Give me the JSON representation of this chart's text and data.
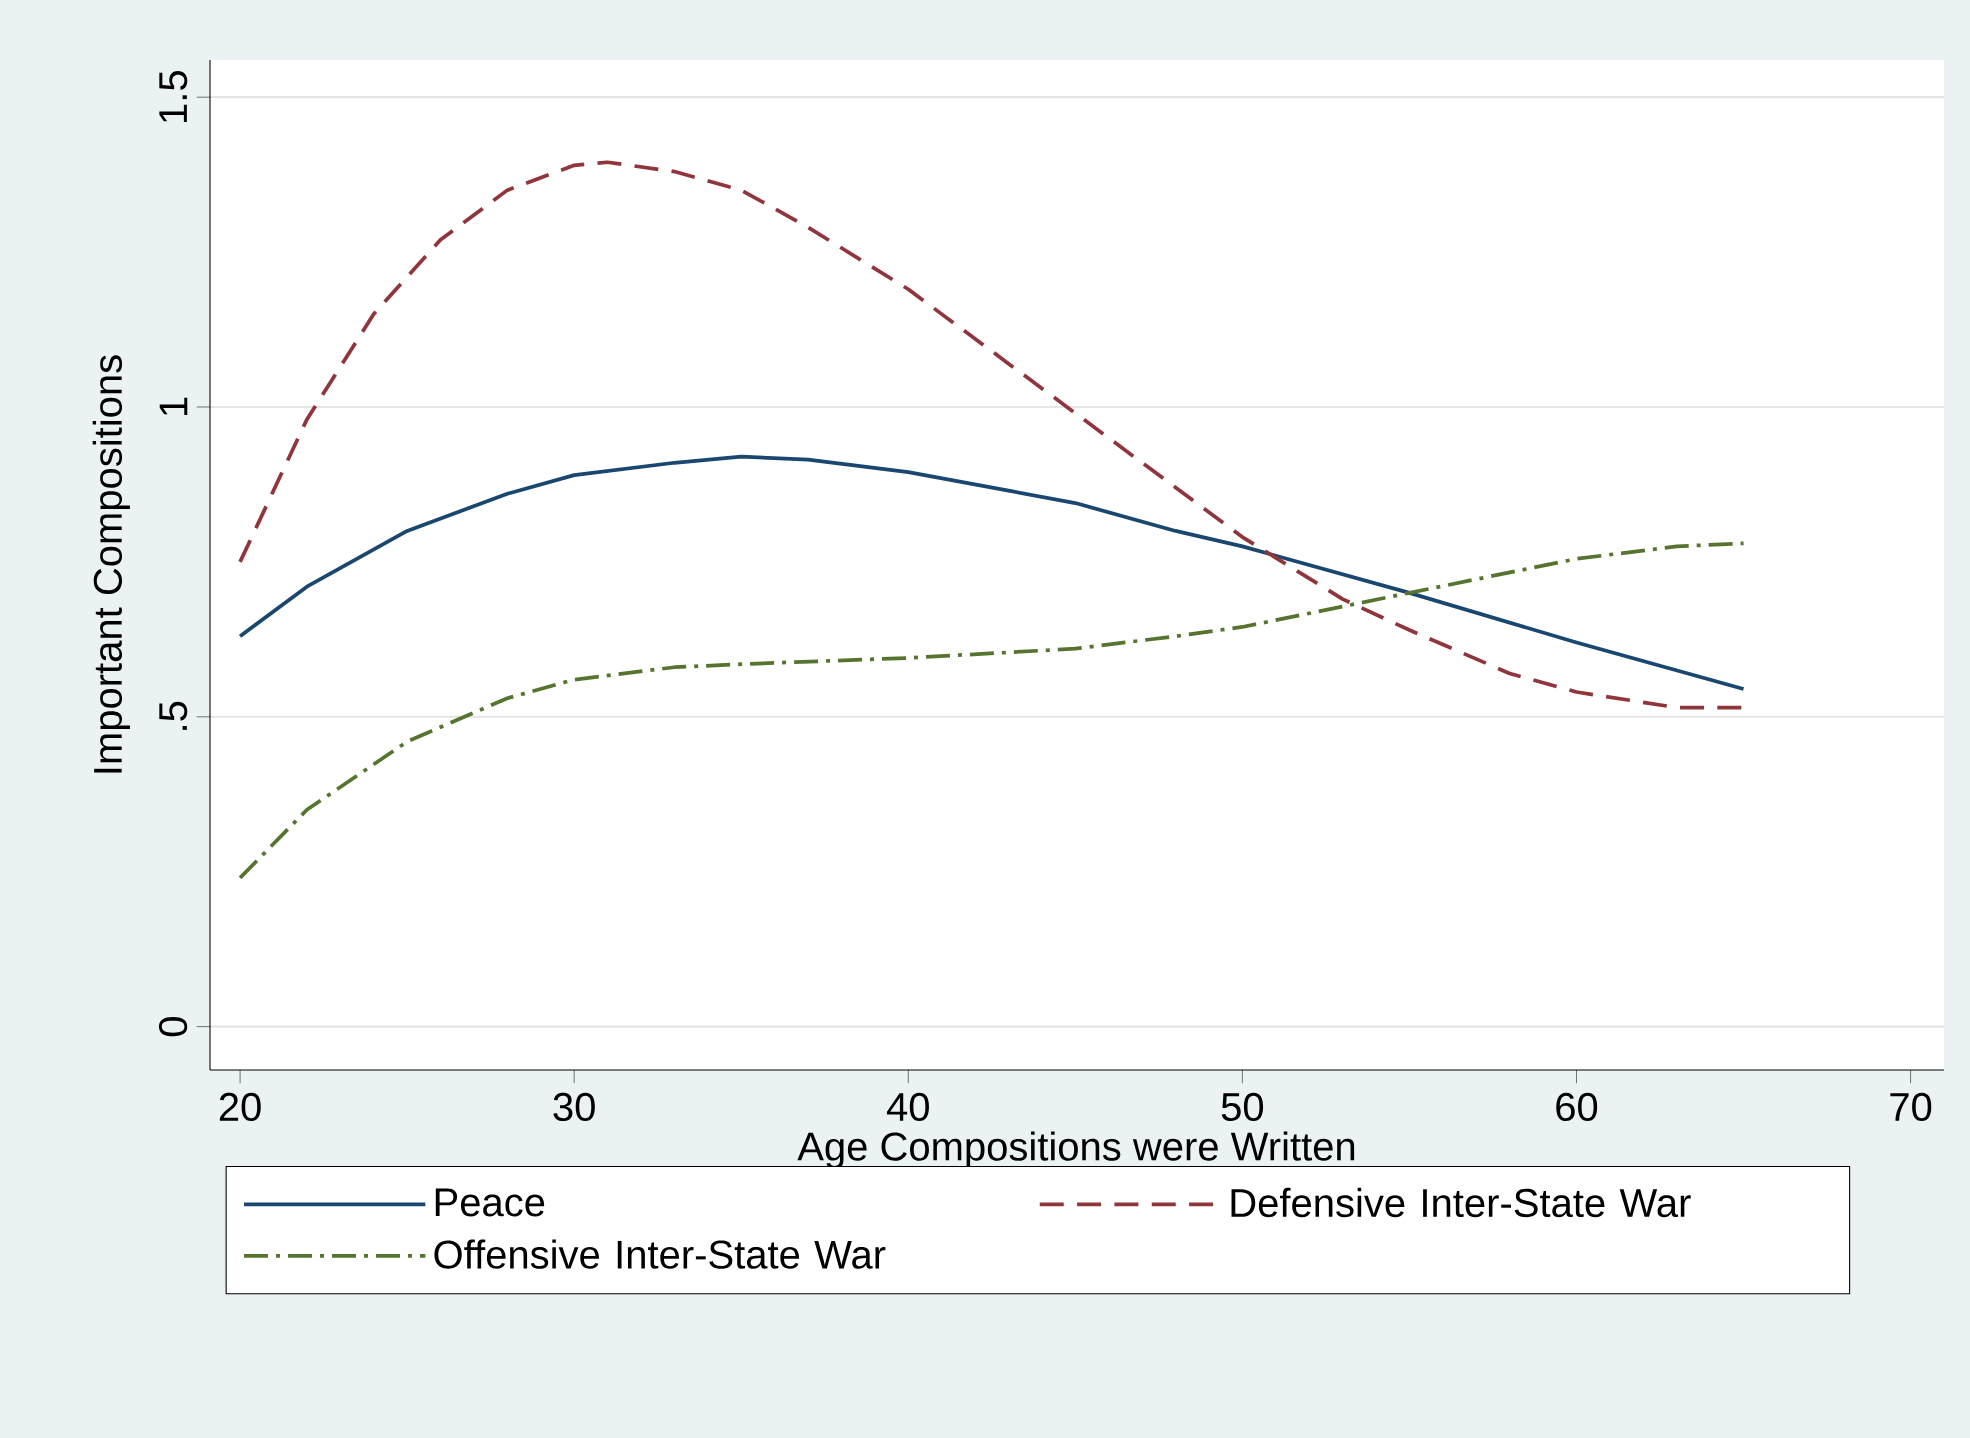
{
  "chart_data": {
    "type": "line",
    "xlabel": "Age Compositions were Written",
    "ylabel": "Important Compositions",
    "xlim": [
      19.1,
      71
    ],
    "ylim": [
      -0.07,
      1.56
    ],
    "xticks": [
      20,
      30,
      40,
      50,
      60,
      70
    ],
    "yticks": [
      0,
      {
        "value": 0.5,
        "label": ".5"
      },
      1,
      1.5
    ],
    "grid": "y",
    "legend": "bottom",
    "marker": "none",
    "series": [
      {
        "name": "Peace",
        "color": "#1a476f",
        "line_style": "solid",
        "x": [
          20,
          22,
          25,
          28,
          30,
          33,
          35,
          37,
          40,
          43,
          45,
          48,
          50,
          55,
          60,
          65
        ],
        "values": [
          0.63,
          0.71,
          0.8,
          0.86,
          0.89,
          0.91,
          0.92,
          0.915,
          0.895,
          0.865,
          0.845,
          0.8,
          0.775,
          0.7,
          0.62,
          0.545
        ]
      },
      {
        "name": "Defensive Inter-State War",
        "color": "#90353b",
        "line_style": "dashed",
        "x": [
          20,
          22,
          24,
          26,
          28,
          30,
          31,
          33,
          35,
          37,
          40,
          43,
          45,
          48,
          50,
          53,
          55,
          58,
          60,
          63,
          65
        ],
        "values": [
          0.75,
          0.98,
          1.15,
          1.27,
          1.35,
          1.39,
          1.395,
          1.38,
          1.35,
          1.29,
          1.19,
          1.07,
          0.99,
          0.87,
          0.79,
          0.69,
          0.64,
          0.57,
          0.54,
          0.515,
          0.515
        ]
      },
      {
        "name": "Offensive Inter-State War",
        "color": "#55752f",
        "line_style": "dashdot",
        "x": [
          20,
          22,
          25,
          28,
          30,
          33,
          35,
          40,
          45,
          48,
          50,
          55,
          60,
          63,
          65
        ],
        "values": [
          0.24,
          0.35,
          0.46,
          0.53,
          0.56,
          0.58,
          0.585,
          0.595,
          0.61,
          0.63,
          0.645,
          0.7,
          0.755,
          0.775,
          0.78
        ]
      }
    ]
  }
}
